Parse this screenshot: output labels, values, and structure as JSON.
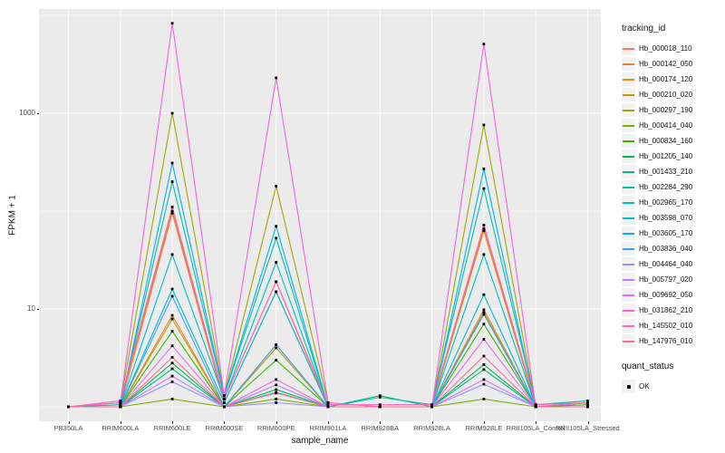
{
  "chart_data": {
    "type": "line",
    "title": "",
    "xlabel": "sample_name",
    "ylabel": "FPKM + 1",
    "y_scale": "log10",
    "ylim": [
      0.9,
      10000
    ],
    "grid": true,
    "panel_bg": "#EBEBEB",
    "grid_color": "#FFFFFF",
    "point_color": "#000000",
    "y_ticks": [
      {
        "label": "10",
        "value": 10
      },
      {
        "label": "1000",
        "value": 1000
      }
    ],
    "y_minor_gridlines": [
      1,
      100,
      10000
    ],
    "categories": [
      "PB350LA",
      "RRIM600LA",
      "RRIM600LE",
      "RRIM600SE",
      "RRIM600PE",
      "RRIM901LA",
      "RRIM928BA",
      "RRIM928LA",
      "RRIM928LE",
      "RRII105LA_Control",
      "RRII105LA_Stressed"
    ],
    "legend_title": "tracking_id",
    "legend_position": "right",
    "quant_legend": {
      "title": "quant_status",
      "items": [
        {
          "label": "OK"
        }
      ]
    },
    "series": [
      {
        "name": "Hb_000018_110",
        "color": "#F8766D",
        "values": [
          1,
          1,
          95,
          1.1,
          15,
          1,
          1,
          1,
          63,
          1,
          1.1
        ]
      },
      {
        "name": "Hb_000142_050",
        "color": "#EA8331",
        "values": [
          1,
          1,
          8.6,
          1,
          4.3,
          1,
          1,
          1,
          9.8,
          1,
          1
        ]
      },
      {
        "name": "Hb_000174_120",
        "color": "#D89000",
        "values": [
          1,
          1.1,
          100,
          1.2,
          19,
          1,
          1,
          1,
          66,
          1,
          1.1
        ]
      },
      {
        "name": "Hb_000210_020",
        "color": "#C09B00",
        "values": [
          1,
          1,
          7.9,
          1,
          4.0,
          1,
          1,
          1,
          9.2,
          1,
          1
        ]
      },
      {
        "name": "Hb_000297_190",
        "color": "#A3A500",
        "values": [
          1,
          1.1,
          1000,
          1.3,
          180,
          1.1,
          1,
          1,
          760,
          1,
          1.1
        ]
      },
      {
        "name": "Hb_000414_040",
        "color": "#7CAE00",
        "values": [
          1,
          1,
          1.2,
          1,
          1.2,
          1,
          1,
          1,
          1.2,
          1,
          1
        ]
      },
      {
        "name": "Hb_000834_160",
        "color": "#39B600",
        "values": [
          1,
          1,
          5.9,
          1,
          3.0,
          1,
          1,
          1,
          7.0,
          1,
          1.05
        ]
      },
      {
        "name": "Hb_001205_140",
        "color": "#00BB4E",
        "values": [
          1,
          1,
          2.8,
          1,
          1.5,
          1,
          1,
          1,
          2.7,
          1,
          1
        ]
      },
      {
        "name": "Hb_001433_210",
        "color": "#00BF7D",
        "values": [
          1,
          1,
          2.45,
          1,
          1.4,
          1,
          1.3,
          1,
          2.4,
          1,
          1.1
        ]
      },
      {
        "name": "Hb_002284_290",
        "color": "#00C1A3",
        "values": [
          1,
          1.05,
          200,
          1.3,
          53,
          1,
          1.25,
          1.05,
          170,
          1.05,
          1.15
        ]
      },
      {
        "name": "Hb_002965_170",
        "color": "#00BFC4",
        "values": [
          1,
          1,
          36,
          1.2,
          30,
          1,
          1,
          1,
          36,
          1,
          1
        ]
      },
      {
        "name": "Hb_003598_070",
        "color": "#00BBDA",
        "values": [
          1,
          1,
          16,
          1.1,
          15,
          1,
          1,
          1,
          14,
          1,
          1
        ]
      },
      {
        "name": "Hb_003605_170",
        "color": "#00B0F6",
        "values": [
          1,
          1,
          310,
          1.3,
          70,
          1,
          1,
          1,
          270,
          1,
          1
        ]
      },
      {
        "name": "Hb_003836_040",
        "color": "#35A2FF",
        "values": [
          1,
          1,
          13.5,
          1,
          4.3,
          1,
          1,
          1,
          8.8,
          1,
          1
        ]
      },
      {
        "name": "Hb_004464_040",
        "color": "#9590FF",
        "values": [
          1,
          1,
          1.8,
          1,
          1.1,
          1,
          1,
          1,
          1.7,
          1,
          1
        ]
      },
      {
        "name": "Hb_005797_020",
        "color": "#C77CFF",
        "values": [
          1,
          1,
          2.06,
          1,
          1.67,
          1,
          1,
          1,
          1.9,
          1,
          1
        ]
      },
      {
        "name": "Hb_009692_050",
        "color": "#E76BF3",
        "values": [
          1,
          1,
          4.2,
          1,
          1.9,
          1,
          1,
          1,
          4.9,
          1,
          1
        ]
      },
      {
        "name": "Hb_031862_210",
        "color": "#FA62DB",
        "values": [
          1,
          1.1,
          8300,
          1.3,
          2300,
          1.1,
          1,
          1,
          5100,
          1,
          1.1
        ]
      },
      {
        "name": "Hb_145502_010",
        "color": "#FF62BC",
        "values": [
          1,
          1.15,
          110,
          1.2,
          19,
          1.05,
          1.05,
          1.05,
          72,
          1.05,
          1.1
        ]
      },
      {
        "name": "Hb_147976_010",
        "color": "#FF6A98",
        "values": [
          1,
          1,
          3.2,
          1,
          1.38,
          1,
          1,
          1,
          3.3,
          1,
          1
        ]
      }
    ]
  }
}
